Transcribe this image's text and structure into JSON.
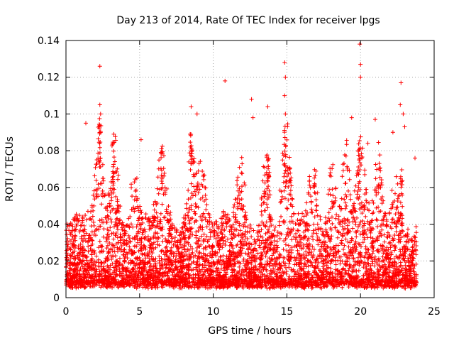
{
  "chart_data": {
    "type": "scatter",
    "title": "Day 213 of 2014, Rate Of TEC Index for receiver lpgs",
    "xlabel": "GPS time / hours",
    "ylabel": "ROTI / TECUs",
    "xlim": [
      0,
      25
    ],
    "ylim": [
      0,
      0.14
    ],
    "x_ticks": [
      "0",
      "5",
      "10",
      "15",
      "20",
      "25"
    ],
    "y_ticks": [
      "0",
      "0.02",
      "0.04",
      "0.06",
      "0.08",
      "0.1",
      "0.12",
      "0.14"
    ],
    "grid": true,
    "marker": "+",
    "color": "#ff0000",
    "series": [
      {
        "name": "ROTI",
        "description": "Dense scatter of ROTI values every few seconds from 0 to ~23.8 h; bulk between 0.005 and 0.05 TECU with spikes up to ~0.14",
        "x_range": [
          0,
          23.8
        ],
        "typical_range": [
          0.005,
          0.05
        ],
        "notable_points": [
          {
            "x": 2.3,
            "y": 0.126
          },
          {
            "x": 2.3,
            "y": 0.105
          },
          {
            "x": 2.35,
            "y": 0.1
          },
          {
            "x": 1.35,
            "y": 0.095
          },
          {
            "x": 3.25,
            "y": 0.089
          },
          {
            "x": 5.1,
            "y": 0.086
          },
          {
            "x": 8.5,
            "y": 0.104
          },
          {
            "x": 8.9,
            "y": 0.1
          },
          {
            "x": 10.8,
            "y": 0.118
          },
          {
            "x": 12.6,
            "y": 0.108
          },
          {
            "x": 12.7,
            "y": 0.098
          },
          {
            "x": 13.7,
            "y": 0.104
          },
          {
            "x": 14.85,
            "y": 0.128
          },
          {
            "x": 14.9,
            "y": 0.12
          },
          {
            "x": 14.85,
            "y": 0.11
          },
          {
            "x": 14.9,
            "y": 0.1
          },
          {
            "x": 19.4,
            "y": 0.098
          },
          {
            "x": 19.95,
            "y": 0.138
          },
          {
            "x": 20.0,
            "y": 0.127
          },
          {
            "x": 20.0,
            "y": 0.12
          },
          {
            "x": 20.5,
            "y": 0.084
          },
          {
            "x": 21.0,
            "y": 0.097
          },
          {
            "x": 22.2,
            "y": 0.09
          },
          {
            "x": 22.75,
            "y": 0.117
          },
          {
            "x": 22.7,
            "y": 0.105
          },
          {
            "x": 22.9,
            "y": 0.1
          },
          {
            "x": 23.0,
            "y": 0.093
          },
          {
            "x": 23.7,
            "y": 0.076
          }
        ]
      }
    ]
  }
}
